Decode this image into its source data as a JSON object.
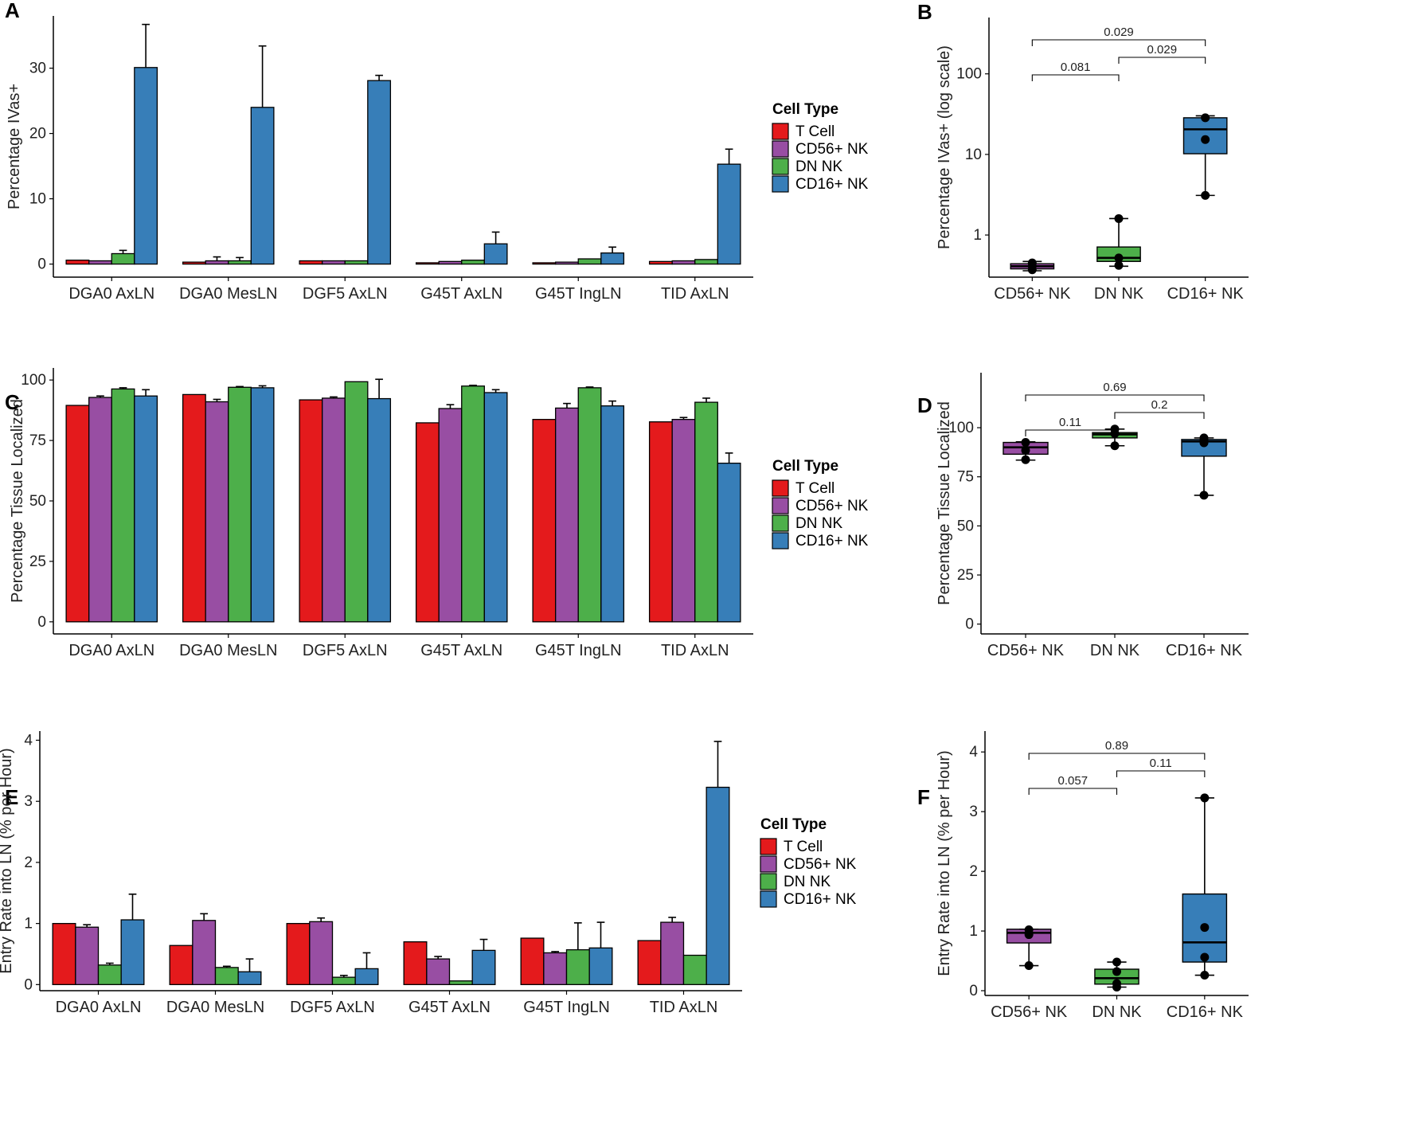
{
  "colors": {
    "T Cell": "#e41a1c",
    "CD56+ NK": "#984ea3",
    "DN NK": "#4daf4a",
    "CD16+ NK": "#377eb8"
  },
  "chart_data": [
    {
      "panel": "A",
      "type": "bar",
      "ylabel": "Percentage IVas+",
      "ylim": [
        -2,
        38
      ],
      "yticks": [
        0,
        10,
        20,
        30
      ],
      "categories": [
        "DGA0 AxLN",
        "DGA0 MesLN",
        "DGF5 AxLN",
        "G45T AxLN",
        "G45T IngLN",
        "TID AxLN"
      ],
      "series": [
        {
          "name": "T Cell",
          "values": [
            0.6,
            0.3,
            0.5,
            0.2,
            0.2,
            0.4
          ],
          "errors": [
            0,
            0,
            0,
            0,
            0,
            0
          ]
        },
        {
          "name": "CD56+ NK",
          "values": [
            0.5,
            0.5,
            0.5,
            0.4,
            0.3,
            0.5
          ],
          "errors": [
            0,
            0.6,
            0,
            0,
            0,
            0
          ]
        },
        {
          "name": "DN NK",
          "values": [
            1.6,
            0.5,
            0.5,
            0.6,
            0.8,
            0.7
          ],
          "errors": [
            0.5,
            0.5,
            0,
            0,
            0,
            0
          ]
        },
        {
          "name": "CD16+ NK",
          "values": [
            30.1,
            24.0,
            28.1,
            3.1,
            1.7,
            15.3
          ],
          "errors": [
            6.6,
            9.4,
            0.8,
            1.8,
            0.9,
            2.3
          ]
        }
      ],
      "legend_title": "Cell Type"
    },
    {
      "panel": "B",
      "type": "box",
      "scale": "log",
      "ylabel": "Percentage IVas+ (log scale)",
      "ylim": [
        0.3,
        500
      ],
      "yticks": [
        1,
        10,
        100
      ],
      "ytick_labels": [
        "1",
        "10",
        "100"
      ],
      "categories": [
        "CD56+ NK",
        "DN NK",
        "CD16+ NK"
      ],
      "boxes": [
        {
          "name": "CD56+ NK",
          "min": 0.36,
          "q1": 0.38,
          "median": 0.41,
          "q3": 0.44,
          "max": 0.47,
          "points": [
            0.37,
            0.41,
            0.45
          ]
        },
        {
          "name": "DN NK",
          "min": 0.41,
          "q1": 0.47,
          "median": 0.52,
          "q3": 0.71,
          "max": 1.6,
          "points": [
            0.42,
            0.52,
            1.6
          ]
        },
        {
          "name": "CD16+ NK",
          "min": 3.1,
          "q1": 10.2,
          "median": 20.5,
          "q3": 28.5,
          "max": 30.1,
          "points": [
            3.1,
            15.3,
            28.5
          ]
        }
      ],
      "comparisons": [
        {
          "from": 0,
          "to": 1,
          "label": "0.081",
          "level": 0
        },
        {
          "from": 1,
          "to": 2,
          "label": "0.029",
          "level": 1
        },
        {
          "from": 0,
          "to": 2,
          "label": "0.029",
          "level": 2
        }
      ]
    },
    {
      "panel": "C",
      "type": "bar",
      "ylabel": "Percentage Tissue Localized",
      "ylim": [
        -5,
        105
      ],
      "yticks": [
        0,
        25,
        50,
        75,
        100
      ],
      "categories": [
        "DGA0 AxLN",
        "DGA0 MesLN",
        "DGF5 AxLN",
        "G45T AxLN",
        "G45T IngLN",
        "TID AxLN"
      ],
      "series": [
        {
          "name": "T Cell",
          "values": [
            89.5,
            94.0,
            91.8,
            82.3,
            83.7,
            82.7
          ],
          "errors": [
            0,
            0,
            0,
            0,
            0,
            0
          ]
        },
        {
          "name": "CD56+ NK",
          "values": [
            92.8,
            91.0,
            92.5,
            88.2,
            88.4,
            83.7
          ],
          "errors": [
            0.6,
            1.0,
            0.5,
            1.6,
            1.9,
            0.8
          ]
        },
        {
          "name": "DN NK",
          "values": [
            96.3,
            97.0,
            99.3,
            97.5,
            96.8,
            90.8
          ],
          "errors": [
            0.5,
            0.3,
            0,
            0.3,
            0.3,
            1.7
          ]
        },
        {
          "name": "CD16+ NK",
          "values": [
            93.4,
            96.8,
            92.3,
            94.8,
            89.3,
            65.6
          ],
          "errors": [
            2.6,
            0.8,
            8.0,
            1.2,
            2.0,
            4.2
          ]
        }
      ],
      "legend_title": "Cell Type"
    },
    {
      "panel": "D",
      "type": "box",
      "scale": "linear",
      "ylabel": "Percentage Tissue Localized",
      "ylim": [
        -5,
        128
      ],
      "yticks": [
        0,
        25,
        50,
        75,
        100
      ],
      "ytick_labels": [
        "0",
        "25",
        "50",
        "75",
        "100"
      ],
      "categories": [
        "CD56+ NK",
        "DN NK",
        "CD16+ NK"
      ],
      "boxes": [
        {
          "name": "CD56+ NK",
          "min": 83.5,
          "q1": 86.5,
          "median": 90.0,
          "q3": 92.5,
          "max": 92.8,
          "points": [
            83.7,
            88.4,
            92.5
          ]
        },
        {
          "name": "DN NK",
          "min": 90.8,
          "q1": 94.8,
          "median": 96.6,
          "q3": 97.5,
          "max": 99.3,
          "points": [
            90.8,
            97.0,
            99.3
          ]
        },
        {
          "name": "CD16+ NK",
          "min": 65.6,
          "q1": 85.5,
          "median": 93.0,
          "q3": 94.0,
          "max": 94.8,
          "points": [
            65.6,
            92.3,
            93.4,
            94.8
          ]
        }
      ],
      "comparisons": [
        {
          "from": 0,
          "to": 1,
          "label": "0.11",
          "level": 0
        },
        {
          "from": 1,
          "to": 2,
          "label": "0.2",
          "level": 1
        },
        {
          "from": 0,
          "to": 2,
          "label": "0.69",
          "level": 2
        }
      ]
    },
    {
      "panel": "E",
      "type": "bar",
      "ylabel": "Entry Rate into LN (% per Hour)",
      "ylim": [
        -0.1,
        4.15
      ],
      "yticks": [
        0,
        1,
        2,
        3,
        4
      ],
      "categories": [
        "DGA0 AxLN",
        "DGA0 MesLN",
        "DGF5 AxLN",
        "G45T AxLN",
        "G45T IngLN",
        "TID AxLN"
      ],
      "series": [
        {
          "name": "T Cell",
          "values": [
            1.0,
            0.64,
            1.0,
            0.7,
            0.76,
            0.72
          ],
          "errors": [
            0,
            0,
            0,
            0,
            0,
            0
          ]
        },
        {
          "name": "CD56+ NK",
          "values": [
            0.94,
            1.05,
            1.03,
            0.42,
            0.52,
            1.02
          ],
          "errors": [
            0.04,
            0.11,
            0.06,
            0.04,
            0.02,
            0.08
          ]
        },
        {
          "name": "DN NK",
          "values": [
            0.32,
            0.28,
            0.12,
            0.06,
            0.57,
            0.48
          ],
          "errors": [
            0.03,
            0.02,
            0.03,
            0,
            0.44,
            0
          ]
        },
        {
          "name": "CD16+ NK",
          "values": [
            1.06,
            0.21,
            0.26,
            0.56,
            0.6,
            3.23
          ],
          "errors": [
            0.42,
            0.21,
            0.26,
            0.18,
            0.42,
            0.75
          ]
        }
      ],
      "legend_title": "Cell Type"
    },
    {
      "panel": "F",
      "type": "box",
      "scale": "linear",
      "ylabel": "Entry Rate into LN (% per Hour)",
      "ylim": [
        -0.08,
        4.35
      ],
      "yticks": [
        0,
        1,
        2,
        3,
        4
      ],
      "ytick_labels": [
        "0",
        "1",
        "2",
        "3",
        "4"
      ],
      "categories": [
        "CD56+ NK",
        "DN NK",
        "CD16+ NK"
      ],
      "boxes": [
        {
          "name": "CD56+ NK",
          "min": 0.42,
          "q1": 0.8,
          "median": 0.97,
          "q3": 1.03,
          "max": 1.03,
          "points": [
            0.42,
            0.94,
            1.02
          ]
        },
        {
          "name": "DN NK",
          "min": 0.06,
          "q1": 0.11,
          "median": 0.21,
          "q3": 0.36,
          "max": 0.48,
          "points": [
            0.06,
            0.12,
            0.32,
            0.48
          ]
        },
        {
          "name": "CD16+ NK",
          "min": 0.26,
          "q1": 0.48,
          "median": 0.81,
          "q3": 1.62,
          "max": 3.23,
          "points": [
            0.26,
            0.56,
            1.06,
            3.23
          ]
        }
      ],
      "comparisons": [
        {
          "from": 0,
          "to": 1,
          "label": "0.057",
          "level": 0
        },
        {
          "from": 1,
          "to": 2,
          "label": "0.11",
          "level": 1
        },
        {
          "from": 0,
          "to": 2,
          "label": "0.89",
          "level": 2
        }
      ]
    }
  ]
}
